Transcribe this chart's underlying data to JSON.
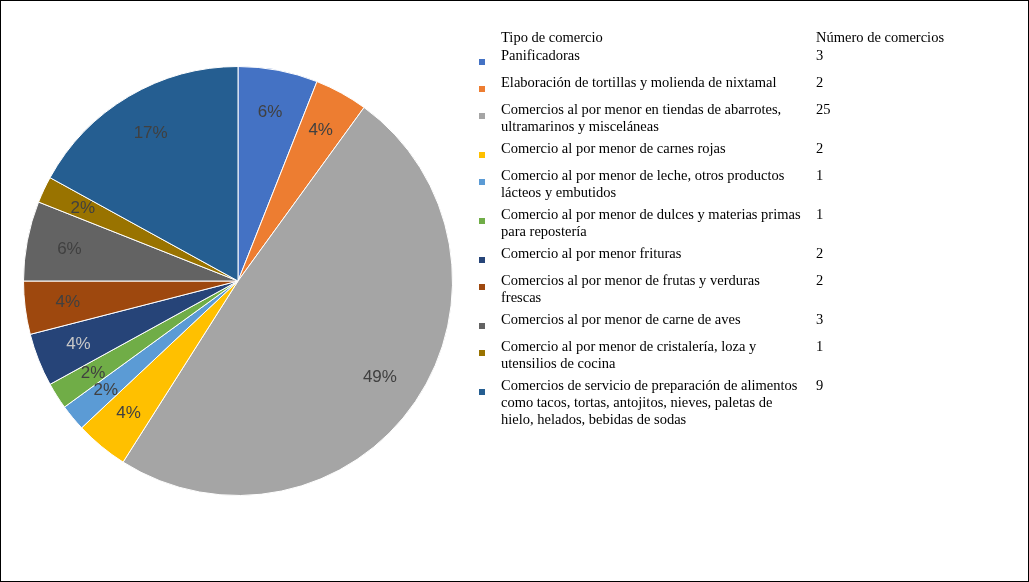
{
  "chart_data": {
    "type": "pie",
    "legend_title": "Tipo de comercio",
    "legend": "right",
    "annotations": [
      "Número de comercios",
      "3",
      "2",
      "25",
      "2",
      "1",
      "1",
      "2",
      "2",
      "3",
      "1",
      "9"
    ],
    "categories": [
      "Panificadoras",
      "Elaboración de tortillas y molienda de nixtamal",
      "Comercios al por menor en tiendas de abarrotes, ultramarinos y misceláneas",
      "Comercio al por menor de carnes rojas",
      "Comercio al por menor de leche, otros productos lácteos y embutidos",
      "Comercio al por menor de dulces y materias primas para repostería",
      "Comercio al por menor frituras",
      "Comercios al por menor de frutas y verduras frescas",
      "Comercios al por menor de carne de aves",
      "Comercio al por menor de cristalería, loza y utensilios de cocina",
      "Comercios de servicio de preparación de alimentos como tacos, tortas, antojitos, nieves, paletas de hielo, helados, bebidas de sodas"
    ],
    "values": [
      6,
      4,
      49,
      4,
      2,
      2,
      4,
      4,
      6,
      2,
      17
    ],
    "value_labels": [
      "6%",
      "4%",
      "49%",
      "4%",
      "2%",
      "2%",
      "4%",
      "4%",
      "6%",
      "2%",
      "17%"
    ],
    "colors": [
      "#4472c4",
      "#ed7d31",
      "#a5a5a5",
      "#ffc000",
      "#5b9bd5",
      "#70ad47",
      "#264478",
      "#9e480e",
      "#636363",
      "#997300",
      "#255e91"
    ]
  }
}
